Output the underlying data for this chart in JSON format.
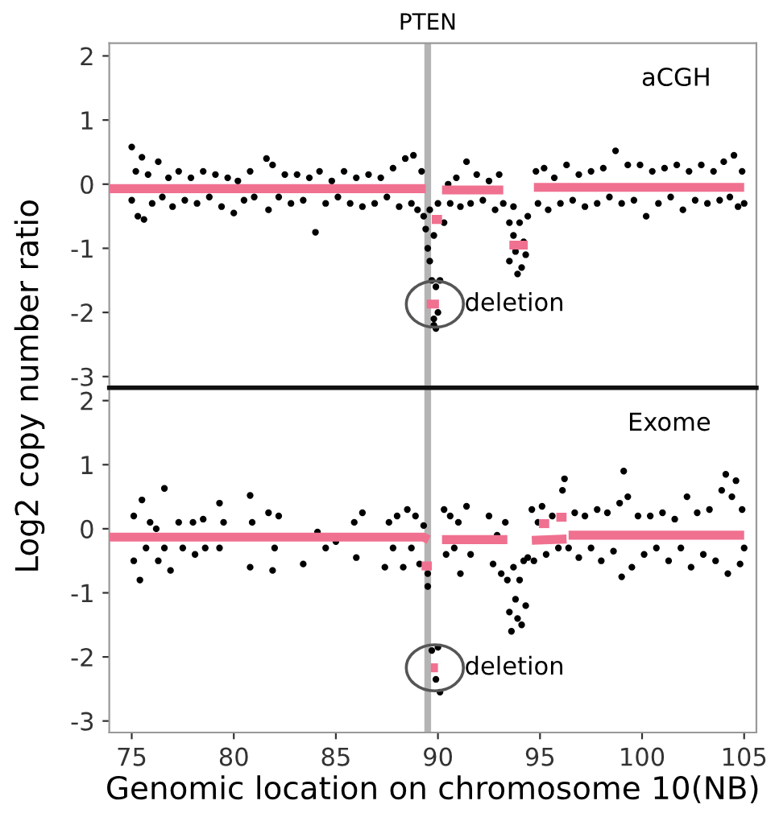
{
  "chart_data": [
    {
      "type": "scatter",
      "ylabel": "Log2 copy number ratio",
      "xlim": [
        73.9,
        105.6
      ],
      "ylim": [
        -3.15,
        2.2
      ],
      "yticks": [
        -3,
        -2,
        -1,
        0,
        1,
        2
      ],
      "tick_labels": "y",
      "annotations": [
        "aCGH",
        "deletion"
      ],
      "ref_lines": [
        {
          "axis": "x",
          "value": 89.5,
          "label": "PTEN",
          "color": "#b4b4b4"
        }
      ],
      "series": [
        {
          "color": "#000000",
          "marker": "circle",
          "x": [
            75.0,
            75.0,
            75.2,
            75.3,
            75.5,
            75.6,
            75.8,
            76.0,
            76.3,
            76.5,
            76.8,
            77.0,
            77.3,
            77.6,
            77.9,
            78.2,
            78.5,
            78.8,
            79.1,
            79.4,
            79.7,
            80.0,
            80.2,
            80.5,
            80.8,
            81.0,
            81.6,
            81.7,
            81.9,
            82.2,
            82.5,
            82.8,
            83.1,
            83.4,
            83.7,
            84.0,
            84.2,
            84.5,
            84.8,
            85.1,
            85.4,
            85.7,
            86.0,
            86.3,
            86.6,
            86.9,
            87.2,
            87.5,
            87.8,
            88.1,
            88.4,
            88.7,
            88.8,
            89.0,
            89.2,
            89.3,
            89.4,
            89.5,
            89.6,
            89.7,
            89.6,
            89.8,
            89.8,
            89.9,
            90.0,
            89.9,
            89.8,
            90.0,
            90.1,
            90.3,
            90.5,
            90.6,
            90.9,
            91.1,
            91.4,
            91.6,
            91.9,
            92.2,
            92.5,
            92.8,
            93.0,
            93.2,
            93.5,
            93.5,
            93.7,
            93.7,
            93.9,
            94.0,
            94.1,
            94.2,
            94.3,
            94.4,
            93.8,
            94.8,
            94.9,
            95.2,
            95.4,
            95.7,
            96.0,
            96.3,
            96.6,
            96.9,
            97.2,
            97.5,
            97.8,
            98.1,
            98.4,
            98.7,
            99.0,
            99.3,
            99.6,
            99.9,
            100.2,
            100.5,
            100.8,
            101.1,
            101.4,
            101.7,
            102.0,
            102.3,
            102.6,
            102.9,
            103.2,
            103.5,
            103.8,
            104.0,
            104.3,
            104.5,
            104.7,
            104.9,
            105.0
          ],
          "values": [
            0.58,
            -0.25,
            0.2,
            -0.5,
            0.42,
            -0.55,
            0.15,
            -0.3,
            0.35,
            -0.2,
            0.1,
            -0.35,
            0.2,
            -0.25,
            0.1,
            -0.3,
            0.2,
            -0.2,
            0.15,
            -0.35,
            0.1,
            -0.45,
            0.05,
            -0.25,
            0.2,
            -0.2,
            0.4,
            -0.4,
            0.3,
            -0.2,
            0.15,
            -0.3,
            0.15,
            -0.25,
            0.1,
            -0.75,
            0.2,
            -0.3,
            0.05,
            -0.2,
            0.2,
            -0.3,
            0.1,
            -0.35,
            0.15,
            -0.3,
            0.1,
            -0.2,
            0.25,
            -0.35,
            0.4,
            -0.3,
            0.45,
            -0.4,
            0.2,
            -0.5,
            -0.7,
            -1.0,
            -1.2,
            -1.5,
            -0.4,
            -0.8,
            -2.1,
            -2.25,
            -2.0,
            -1.6,
            -2.2,
            -0.3,
            -1.5,
            -0.6,
            0.0,
            -0.3,
            0.1,
            -0.35,
            0.35,
            -0.3,
            0.15,
            -0.25,
            0.05,
            -0.4,
            0.15,
            -0.3,
            -0.6,
            -1.2,
            -0.35,
            -0.8,
            -1.4,
            -0.6,
            -1.3,
            -0.9,
            -1.1,
            -0.5,
            -1.05,
            0.2,
            -0.3,
            0.25,
            -0.4,
            0.1,
            -0.3,
            0.3,
            -0.25,
            0.15,
            -0.35,
            0.2,
            -0.3,
            0.25,
            -0.2,
            0.52,
            -0.3,
            0.3,
            -0.25,
            0.3,
            -0.5,
            0.2,
            -0.3,
            0.25,
            -0.2,
            0.3,
            -0.4,
            0.2,
            -0.25,
            0.3,
            -0.3,
            0.2,
            -0.25,
            0.35,
            -0.2,
            0.45,
            -0.35,
            0.2,
            -0.3
          ]
        },
        {
          "type": "line",
          "color": "#f07090",
          "x": [
            73.9,
            89.4
          ],
          "values": [
            -0.07,
            -0.07
          ]
        },
        {
          "type": "line",
          "color": "#f07090",
          "x": [
            89.7,
            90.2
          ],
          "values": [
            -0.55,
            -0.55
          ]
        },
        {
          "type": "line",
          "color": "#f07090",
          "x": [
            89.45,
            90.05
          ],
          "values": [
            -1.87,
            -1.87
          ]
        },
        {
          "type": "line",
          "color": "#f07090",
          "x": [
            90.2,
            93.2
          ],
          "values": [
            -0.09,
            -0.09
          ]
        },
        {
          "type": "line",
          "color": "#f07090",
          "x": [
            93.5,
            94.4
          ],
          "values": [
            -0.95,
            -0.95
          ]
        },
        {
          "type": "line",
          "color": "#f07090",
          "x": [
            94.7,
            105.0
          ],
          "values": [
            -0.05,
            -0.05
          ]
        }
      ]
    },
    {
      "type": "scatter",
      "xlabel": "Genomic location on chromosome 10(NB)",
      "xlim": [
        73.9,
        105.6
      ],
      "ylim": [
        -3.18,
        2.2
      ],
      "xticks": [
        75,
        80,
        85,
        90,
        95,
        100,
        105
      ],
      "yticks": [
        -3,
        -2,
        -1,
        0,
        1,
        2
      ],
      "annotations": [
        "Exome",
        "deletion"
      ],
      "ref_lines": [
        {
          "axis": "x",
          "value": 89.5,
          "label": null,
          "color": "#b4b4b4"
        }
      ],
      "series": [
        {
          "color": "#000000",
          "marker": "circle",
          "x": [
            75.1,
            75.1,
            75.4,
            75.5,
            75.7,
            75.9,
            76.2,
            76.3,
            76.6,
            76.6,
            76.9,
            77.3,
            77.5,
            78.0,
            78.1,
            78.5,
            78.6,
            79.3,
            79.3,
            79.5,
            80.8,
            80.8,
            80.9,
            81.7,
            81.9,
            82.0,
            82.2,
            83.4,
            84.1,
            84.5,
            85.0,
            85.9,
            86.0,
            86.3,
            87.4,
            87.6,
            87.8,
            88.0,
            88.3,
            88.5,
            88.7,
            88.9,
            89.1,
            89.3,
            89.5,
            89.5,
            89.7,
            89.9,
            90.0,
            90.1,
            90.3,
            90.4,
            90.6,
            90.8,
            91.0,
            91.1,
            91.4,
            91.6,
            92.5,
            92.7,
            92.9,
            93.1,
            93.3,
            93.4,
            93.5,
            93.6,
            93.7,
            93.8,
            93.9,
            94.0,
            94.1,
            94.2,
            94.3,
            94.4,
            94.6,
            94.7,
            94.9,
            95.1,
            95.3,
            95.6,
            95.9,
            96.1,
            96.2,
            96.4,
            96.7,
            96.9,
            97.2,
            97.5,
            97.8,
            98.0,
            98.3,
            98.6,
            98.9,
            99.0,
            99.1,
            99.3,
            99.5,
            99.8,
            100.1,
            100.4,
            100.7,
            101.0,
            101.3,
            101.6,
            101.9,
            102.2,
            102.4,
            102.7,
            103.0,
            103.3,
            103.6,
            103.9,
            104.1,
            104.2,
            104.4,
            104.6,
            104.8,
            104.9,
            105.0
          ],
          "values": [
            0.2,
            -0.5,
            -0.8,
            0.45,
            -0.3,
            0.1,
            0.0,
            -0.5,
            0.63,
            -0.3,
            -0.65,
            0.1,
            -0.3,
            0.1,
            -0.4,
            0.15,
            -0.3,
            0.4,
            -0.3,
            0.1,
            0.52,
            -0.6,
            0.1,
            0.25,
            -0.65,
            -0.3,
            0.2,
            -0.55,
            -0.05,
            -0.3,
            -0.2,
            0.1,
            -0.45,
            0.25,
            -0.6,
            0.1,
            -0.3,
            0.2,
            -0.6,
            0.3,
            -0.3,
            0.2,
            -0.55,
            0.05,
            -0.9,
            -0.7,
            -1.9,
            -2.35,
            -1.85,
            -2.55,
            0.3,
            -0.4,
            0.2,
            -0.3,
            0.1,
            -0.7,
            0.35,
            -0.4,
            0.2,
            -0.55,
            -0.1,
            -0.7,
            0.1,
            -0.8,
            -1.3,
            -1.6,
            -0.6,
            -1.1,
            -1.4,
            -0.8,
            -1.5,
            -0.5,
            -1.2,
            -0.45,
            0.3,
            -0.5,
            0.1,
            0.35,
            -0.4,
            0.2,
            -0.3,
            0.6,
            0.78,
            -0.3,
            0.25,
            -0.45,
            0.2,
            -0.3,
            0.3,
            -0.5,
            0.25,
            -0.35,
            0.4,
            -0.75,
            0.9,
            0.5,
            -0.6,
            0.2,
            -0.4,
            0.2,
            -0.3,
            0.25,
            -0.5,
            0.15,
            -0.3,
            0.5,
            -0.6,
            0.25,
            -0.4,
            0.3,
            -0.5,
            0.6,
            0.85,
            -0.7,
            0.5,
            0.75,
            -0.55,
            0.3,
            -0.3
          ]
        },
        {
          "type": "line",
          "color": "#f07090",
          "x": [
            73.9,
            89.3,
            89.55
          ],
          "values": [
            -0.13,
            -0.13,
            -0.17
          ]
        },
        {
          "type": "line",
          "color": "#f07090",
          "x": [
            89.2,
            89.7
          ],
          "values": [
            -0.58,
            -0.58
          ]
        },
        {
          "type": "line",
          "color": "#f07090",
          "x": [
            89.65,
            90.0
          ],
          "values": [
            -2.17,
            -2.17
          ]
        },
        {
          "type": "line",
          "color": "#f07090",
          "x": [
            90.2,
            93.4
          ],
          "values": [
            -0.17,
            -0.17
          ]
        },
        {
          "type": "line",
          "color": "#f07090",
          "x": [
            94.6,
            96.3
          ],
          "values": [
            -0.18,
            -0.16
          ]
        },
        {
          "type": "line",
          "color": "#f07090",
          "x": [
            96.4,
            105.0
          ],
          "values": [
            -0.1,
            -0.1
          ]
        },
        {
          "type": "line",
          "color": "#f07090",
          "x": [
            94.95,
            95.45
          ],
          "values": [
            0.08,
            0.08
          ]
        },
        {
          "type": "line",
          "color": "#f07090",
          "x": [
            95.8,
            96.3
          ],
          "values": [
            0.18,
            0.18
          ]
        }
      ]
    }
  ]
}
